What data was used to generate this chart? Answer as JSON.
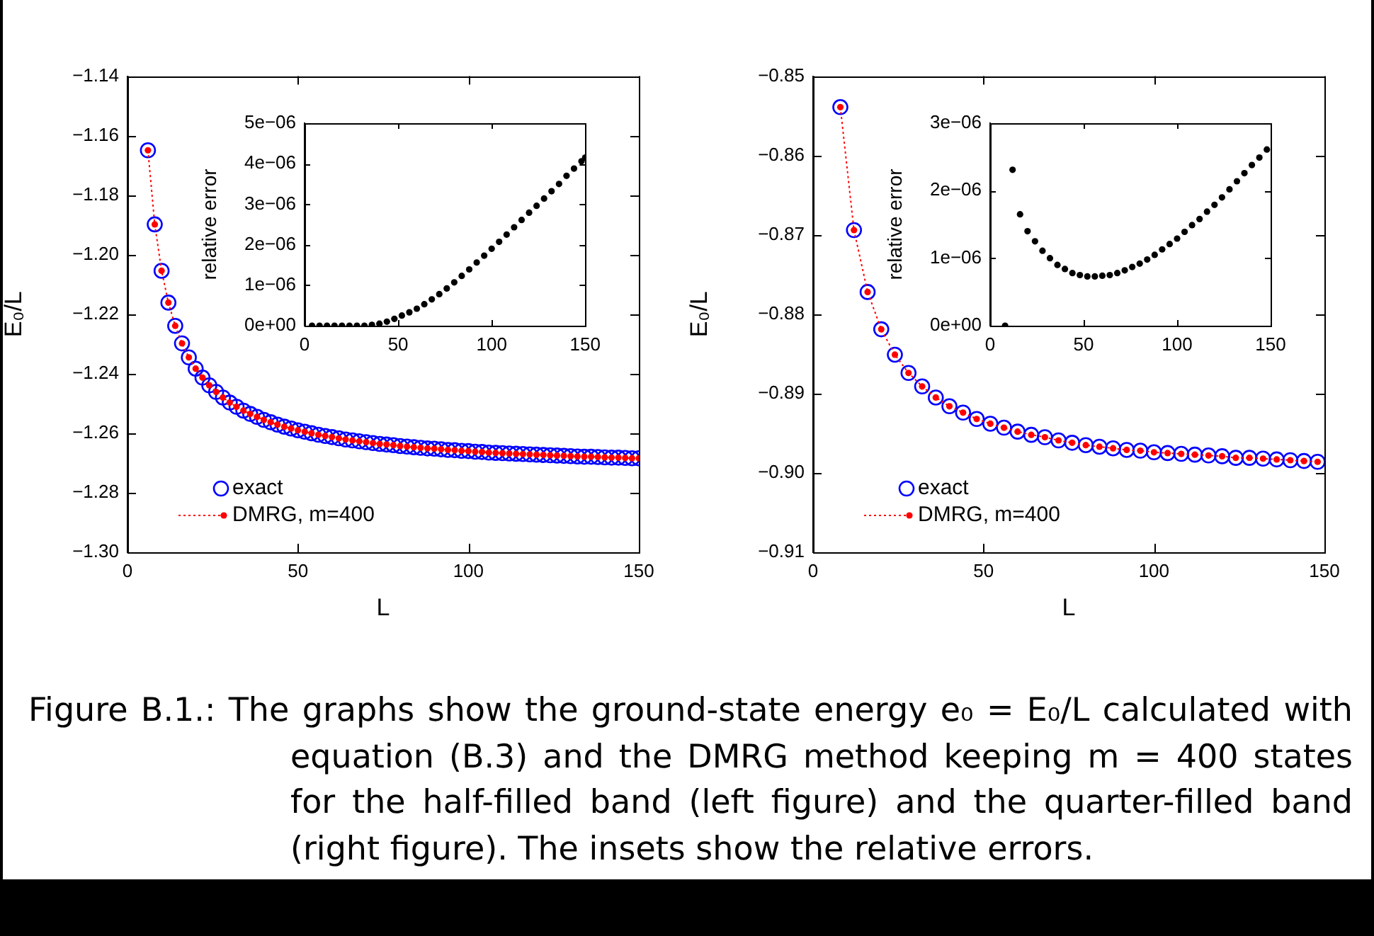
{
  "chart_data": [
    {
      "type": "line",
      "xlabel": "L",
      "ylabel": "E₀/L",
      "xlim": [
        0,
        150
      ],
      "ylim": [
        -1.3,
        -1.14
      ],
      "xticks": [
        0,
        50,
        100,
        150
      ],
      "yticks": [
        {
          "value": -1.3,
          "label": "−1.30"
        },
        {
          "value": -1.28,
          "label": "−1.28"
        },
        {
          "value": -1.26,
          "label": "−1.26"
        },
        {
          "value": -1.24,
          "label": "−1.24"
        },
        {
          "value": -1.22,
          "label": "−1.22"
        },
        {
          "value": -1.2,
          "label": "−1.20"
        },
        {
          "value": -1.18,
          "label": "−1.18"
        },
        {
          "value": -1.16,
          "label": "−1.16"
        },
        {
          "value": -1.14,
          "label": "−1.14"
        }
      ],
      "marker": "circle",
      "line_style": "dotted",
      "legend": "bottom left",
      "annotations": [
        "Figure B.1.: The graphs show the ground-state energy e₀ = E₀/L calculated with equation (B.3) and the DMRG method keeping m = 400 states for the half-filled band (left figure) and the quarter-filled band (right figure). The insets show the relative errors."
      ],
      "x": [
        6,
        8,
        10,
        12,
        14,
        16,
        18,
        20,
        22,
        24,
        26,
        28,
        30,
        32,
        34,
        36,
        38,
        40,
        42,
        44,
        46,
        48,
        50,
        52,
        54,
        56,
        58,
        60,
        62,
        64,
        66,
        68,
        70,
        72,
        74,
        76,
        78,
        80,
        82,
        84,
        86,
        88,
        90,
        92,
        94,
        96,
        98,
        100,
        102,
        104,
        106,
        108,
        110,
        112,
        114,
        116,
        118,
        120,
        122,
        124,
        126,
        128,
        130,
        132,
        134,
        136,
        138,
        140,
        142,
        144,
        146,
        148,
        150
      ],
      "series": [
        {
          "name": "exact",
          "type": "scatter",
          "color": "#0000ff",
          "values": [
            -1.1649,
            -1.1898,
            -1.2054,
            -1.2161,
            -1.2239,
            -1.2298,
            -1.2345,
            -1.2383,
            -1.2413,
            -1.2439,
            -1.2461,
            -1.248,
            -1.2497,
            -1.2511,
            -1.2524,
            -1.2535,
            -1.2545,
            -1.2555,
            -1.2563,
            -1.2571,
            -1.2578,
            -1.2584,
            -1.259,
            -1.2595,
            -1.26,
            -1.2605,
            -1.2609,
            -1.2613,
            -1.2617,
            -1.2621,
            -1.2624,
            -1.2627,
            -1.263,
            -1.2633,
            -1.2636,
            -1.2638,
            -1.264,
            -1.2643,
            -1.2645,
            -1.2647,
            -1.2649,
            -1.2651,
            -1.2652,
            -1.2654,
            -1.2656,
            -1.2657,
            -1.2659,
            -1.266,
            -1.2662,
            -1.2663,
            -1.2665,
            -1.2666,
            -1.2667,
            -1.2668,
            -1.2669,
            -1.267,
            -1.2671,
            -1.2672,
            -1.2673,
            -1.2674,
            -1.2675,
            -1.2676,
            -1.2677,
            -1.2678,
            -1.2679,
            -1.2679,
            -1.268,
            -1.2681,
            -1.2682,
            -1.2682,
            -1.2683,
            -1.2684,
            -1.2684
          ]
        },
        {
          "name": "DMRG, m=400",
          "type": "line",
          "color": "#ff0000",
          "values": [
            -1.1649,
            -1.1898,
            -1.2054,
            -1.2161,
            -1.2239,
            -1.2298,
            -1.2345,
            -1.2383,
            -1.2413,
            -1.2439,
            -1.2461,
            -1.248,
            -1.2497,
            -1.2511,
            -1.2524,
            -1.2535,
            -1.2545,
            -1.2555,
            -1.2563,
            -1.2571,
            -1.2578,
            -1.2584,
            -1.259,
            -1.2595,
            -1.26,
            -1.2605,
            -1.2609,
            -1.2613,
            -1.2617,
            -1.2621,
            -1.2624,
            -1.2627,
            -1.263,
            -1.2633,
            -1.2636,
            -1.2638,
            -1.264,
            -1.2643,
            -1.2645,
            -1.2647,
            -1.2649,
            -1.2651,
            -1.2652,
            -1.2654,
            -1.2656,
            -1.2657,
            -1.2659,
            -1.266,
            -1.2662,
            -1.2663,
            -1.2665,
            -1.2666,
            -1.2667,
            -1.2668,
            -1.2669,
            -1.267,
            -1.2671,
            -1.2672,
            -1.2673,
            -1.2674,
            -1.2675,
            -1.2676,
            -1.2677,
            -1.2678,
            -1.2679,
            -1.2679,
            -1.268,
            -1.2681,
            -1.2682,
            -1.2682,
            -1.2683,
            -1.2684,
            -1.2684
          ]
        }
      ]
    },
    {
      "type": "scatter",
      "ylabel": "relative error",
      "xlim": [
        0,
        150
      ],
      "ylim": [
        0,
        5e-06
      ],
      "xticks": [
        0,
        50,
        100,
        150
      ],
      "yticks": [
        {
          "value": 0,
          "label": "0e+00"
        },
        {
          "value": 1e-06,
          "label": "1e−06"
        },
        {
          "value": 2e-06,
          "label": "2e−06"
        },
        {
          "value": 3e-06,
          "label": "3e−06"
        },
        {
          "value": 4e-06,
          "label": "4e−06"
        },
        {
          "value": 5e-06,
          "label": "5e−06"
        }
      ],
      "marker": "circle",
      "x": [
        4,
        8,
        12,
        16,
        20,
        24,
        28,
        32,
        36,
        40,
        44,
        48,
        52,
        56,
        60,
        64,
        68,
        72,
        76,
        80,
        84,
        88,
        92,
        96,
        100,
        104,
        108,
        112,
        116,
        120,
        124,
        128,
        132,
        136,
        140,
        144,
        148,
        150
      ],
      "series": [
        {
          "color": "#000000",
          "values": [
            0,
            0,
            0,
            0,
            0,
            0,
            0,
            0,
            2e-08,
            5e-08,
            1e-07,
            1.7e-07,
            2.5e-07,
            3.3e-07,
            4.2e-07,
            5.3e-07,
            6.5e-07,
            7.8e-07,
            9.2e-07,
            1.07e-06,
            1.23e-06,
            1.39e-06,
            1.56e-06,
            1.73e-06,
            1.9e-06,
            2.07e-06,
            2.25e-06,
            2.43e-06,
            2.61e-06,
            2.79e-06,
            2.96e-06,
            3.14e-06,
            3.32e-06,
            3.5e-06,
            3.7e-06,
            3.88e-06,
            4.06e-06,
            4.15e-06
          ]
        }
      ]
    },
    {
      "type": "line",
      "xlabel": "L",
      "ylabel": "E₀/L",
      "xlim": [
        0,
        150
      ],
      "ylim": [
        -0.91,
        -0.85
      ],
      "xticks": [
        0,
        50,
        100,
        150
      ],
      "yticks": [
        {
          "value": -0.91,
          "label": "−0.91"
        },
        {
          "value": -0.9,
          "label": "−0.90"
        },
        {
          "value": -0.89,
          "label": "−0.89"
        },
        {
          "value": -0.88,
          "label": "−0.88"
        },
        {
          "value": -0.87,
          "label": "−0.87"
        },
        {
          "value": -0.86,
          "label": "−0.86"
        },
        {
          "value": -0.85,
          "label": "−0.85"
        }
      ],
      "marker": "circle",
      "line_style": "dotted",
      "legend": "bottom left",
      "x": [
        8,
        12,
        16,
        20,
        24,
        28,
        32,
        36,
        40,
        44,
        48,
        52,
        56,
        60,
        64,
        68,
        72,
        76,
        80,
        84,
        88,
        92,
        96,
        100,
        104,
        108,
        112,
        116,
        120,
        124,
        128,
        132,
        136,
        140,
        144,
        148
      ],
      "series": [
        {
          "name": "exact",
          "type": "scatter",
          "color": "#0000ff",
          "values": [
            -0.8539,
            -0.8694,
            -0.8772,
            -0.8819,
            -0.8851,
            -0.8874,
            -0.8891,
            -0.8905,
            -0.8916,
            -0.8924,
            -0.8932,
            -0.8938,
            -0.8943,
            -0.8948,
            -0.8952,
            -0.8955,
            -0.8959,
            -0.8962,
            -0.8965,
            -0.8967,
            -0.8969,
            -0.8971,
            -0.8972,
            -0.8974,
            -0.8975,
            -0.8976,
            -0.8977,
            -0.8978,
            -0.8979,
            -0.8981,
            -0.8981,
            -0.8982,
            -0.8983,
            -0.8984,
            -0.8985,
            -0.8986
          ]
        },
        {
          "name": "DMRG, m=400",
          "type": "line",
          "color": "#ff0000",
          "values": [
            -0.8539,
            -0.8694,
            -0.8772,
            -0.8819,
            -0.8851,
            -0.8874,
            -0.8891,
            -0.8905,
            -0.8916,
            -0.8924,
            -0.8932,
            -0.8938,
            -0.8943,
            -0.8948,
            -0.8952,
            -0.8955,
            -0.8959,
            -0.8962,
            -0.8965,
            -0.8967,
            -0.8969,
            -0.8971,
            -0.8972,
            -0.8974,
            -0.8975,
            -0.8976,
            -0.8977,
            -0.8978,
            -0.8979,
            -0.8981,
            -0.8981,
            -0.8982,
            -0.8983,
            -0.8984,
            -0.8985,
            -0.8986
          ]
        }
      ]
    },
    {
      "type": "scatter",
      "ylabel": "relative error",
      "xlim": [
        0,
        150
      ],
      "ylim": [
        0,
        3e-06
      ],
      "xticks": [
        0,
        50,
        100,
        150
      ],
      "yticks": [
        {
          "value": 0,
          "label": "0e+00"
        },
        {
          "value": 1e-06,
          "label": "1e−06"
        },
        {
          "value": 2e-06,
          "label": "2e−06"
        },
        {
          "value": 3e-06,
          "label": "3e−06"
        }
      ],
      "marker": "circle",
      "x": [
        8,
        12,
        16,
        20,
        24,
        28,
        32,
        36,
        40,
        44,
        48,
        52,
        56,
        60,
        64,
        68,
        72,
        76,
        80,
        84,
        88,
        92,
        96,
        100,
        104,
        108,
        112,
        116,
        120,
        124,
        128,
        132,
        136,
        140,
        144,
        148
      ],
      "series": [
        {
          "color": "#000000",
          "values": [
            0,
            2.31e-06,
            1.65e-06,
            1.4e-06,
            1.25e-06,
            1.11e-06,
            1e-06,
            9e-07,
            8.4e-07,
            7.8e-07,
            7.5e-07,
            7.3e-07,
            7.3e-07,
            7.4e-07,
            7.5e-07,
            7.8e-07,
            8.2e-07,
            8.7e-07,
            9.2e-07,
            9.8e-07,
            1.05e-06,
            1.13e-06,
            1.21e-06,
            1.29e-06,
            1.39e-06,
            1.49e-06,
            1.58e-06,
            1.69e-06,
            1.79e-06,
            1.9e-06,
            2.02e-06,
            2.14e-06,
            2.26e-06,
            2.38e-06,
            2.49e-06,
            2.61e-06
          ]
        }
      ]
    }
  ]
}
